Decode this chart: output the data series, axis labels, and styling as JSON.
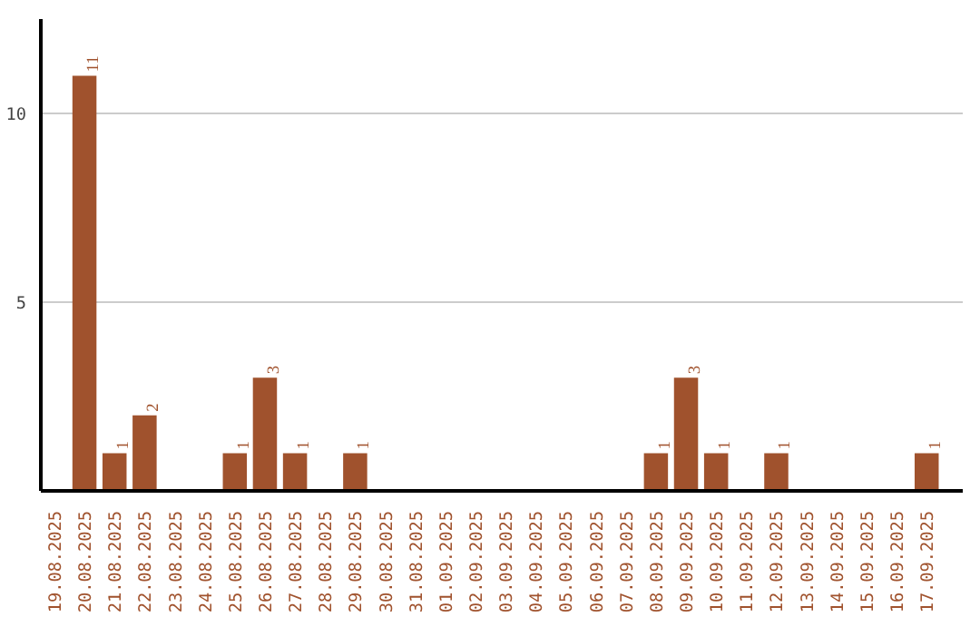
{
  "chart_data": {
    "type": "bar",
    "categories": [
      "19.08.2025",
      "20.08.2025",
      "21.08.2025",
      "22.08.2025",
      "23.08.2025",
      "24.08.2025",
      "25.08.2025",
      "26.08.2025",
      "27.08.2025",
      "28.08.2025",
      "29.08.2025",
      "30.08.2025",
      "31.08.2025",
      "01.09.2025",
      "02.09.2025",
      "03.09.2025",
      "04.09.2025",
      "05.09.2025",
      "06.09.2025",
      "07.09.2025",
      "08.09.2025",
      "09.09.2025",
      "10.09.2025",
      "11.09.2025",
      "12.09.2025",
      "13.09.2025",
      "14.09.2025",
      "15.09.2025",
      "16.09.2025",
      "17.09.2025"
    ],
    "values": [
      0,
      11,
      1,
      2,
      0,
      0,
      1,
      3,
      1,
      0,
      1,
      0,
      0,
      0,
      0,
      0,
      0,
      0,
      0,
      0,
      1,
      3,
      1,
      0,
      1,
      0,
      0,
      0,
      0,
      1
    ],
    "value_labels": [
      null,
      "11",
      "1",
      "2",
      null,
      null,
      "1",
      "3",
      "1",
      null,
      "1",
      null,
      null,
      null,
      null,
      null,
      null,
      null,
      null,
      null,
      "1",
      "3",
      "1",
      null,
      "1",
      null,
      null,
      null,
      null,
      "1"
    ],
    "color": "#a0522d",
    "ylim": [
      0,
      12.5
    ],
    "yticks": [
      5,
      10
    ],
    "grid": "y"
  }
}
